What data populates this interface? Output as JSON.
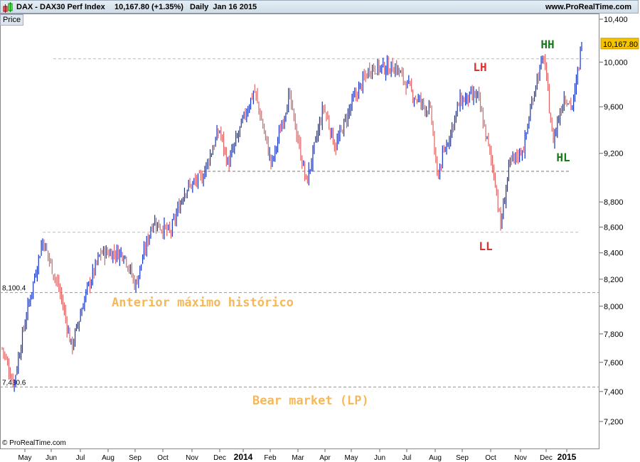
{
  "header": {
    "title": "DAX - DAX30 Perf Index",
    "last": "10,167.80 (+1.35%)",
    "period": "Daily  Jan 16 2015",
    "site": "www.ProRealTime.com"
  },
  "price_tab": "Price",
  "copyright": "© ProRealTime.com",
  "colors": {
    "up": "#1533c4",
    "down": "#e06464",
    "last_bg": "#f5c400",
    "orange": "#f5b85a",
    "red": "#e03030",
    "green": "#1a7a1a"
  },
  "chart_data": {
    "type": "ohlc",
    "title": "DAX - DAX30 Perf Index",
    "scale": "log",
    "ylim": [
      7100,
      10450
    ],
    "y_ticks": [
      "10,400",
      "10,000",
      "9,600",
      "9,200",
      "8,800",
      "8,600",
      "8,400",
      "8,200",
      "8,000",
      "7,800",
      "7,600",
      "7,400",
      "7,200"
    ],
    "y_tick_values": [
      10400,
      10000,
      9600,
      9200,
      8800,
      8600,
      8400,
      8200,
      8000,
      7800,
      7600,
      7400,
      7200
    ],
    "x_ticks": [
      "May",
      "Jun",
      "Jul",
      "Aug",
      "Sep",
      "Oct",
      "Nov",
      "Dec",
      "2014",
      "Feb",
      "Mar",
      "Apr",
      "May",
      "Jun",
      "Jul",
      "Aug",
      "Sep",
      "Oct",
      "Nov",
      "Dec",
      "2015"
    ],
    "last_value": "10,167.80",
    "price_path": [
      [
        0,
        7700
      ],
      [
        0.02,
        7450
      ],
      [
        0.04,
        7900
      ],
      [
        0.07,
        8500
      ],
      [
        0.1,
        8100
      ],
      [
        0.12,
        7700
      ],
      [
        0.145,
        8100
      ],
      [
        0.17,
        8400
      ],
      [
        0.21,
        8400
      ],
      [
        0.23,
        8150
      ],
      [
        0.26,
        8650
      ],
      [
        0.29,
        8550
      ],
      [
        0.315,
        8900
      ],
      [
        0.345,
        9000
      ],
      [
        0.375,
        9400
      ],
      [
        0.39,
        9100
      ],
      [
        0.41,
        9400
      ],
      [
        0.435,
        9750
      ],
      [
        0.465,
        9100
      ],
      [
        0.495,
        9700
      ],
      [
        0.525,
        8950
      ],
      [
        0.555,
        9600
      ],
      [
        0.575,
        9250
      ],
      [
        0.605,
        9650
      ],
      [
        0.635,
        9950
      ],
      [
        0.68,
        9950
      ],
      [
        0.71,
        9700
      ],
      [
        0.74,
        9550
      ],
      [
        0.75,
        9000
      ],
      [
        0.79,
        9650
      ],
      [
        0.82,
        9700
      ],
      [
        0.85,
        9000
      ],
      [
        0.86,
        8600
      ],
      [
        0.875,
        9100
      ],
      [
        0.9,
        9250
      ],
      [
        0.92,
        9800
      ],
      [
        0.935,
        10050
      ],
      [
        0.95,
        9300
      ],
      [
        0.97,
        9700
      ],
      [
        0.985,
        9600
      ],
      [
        1,
        10167.8
      ]
    ],
    "levels": [
      {
        "value": 10030,
        "label": ""
      },
      {
        "value": 9050,
        "label": ""
      },
      {
        "value": 8560,
        "label": ""
      },
      {
        "value": 8100.4,
        "label": "8,100.4"
      },
      {
        "value": 7430.6,
        "label": "7,430.6"
      }
    ],
    "annotations": [
      {
        "text": "LH",
        "color": "red"
      },
      {
        "text": "HH",
        "color": "green"
      },
      {
        "text": "HL",
        "color": "green"
      },
      {
        "text": "LL",
        "color": "red"
      },
      {
        "text": "Anterior máximo histórico",
        "color": "orange"
      },
      {
        "text": "Bear market (LP)",
        "color": "orange"
      }
    ]
  }
}
